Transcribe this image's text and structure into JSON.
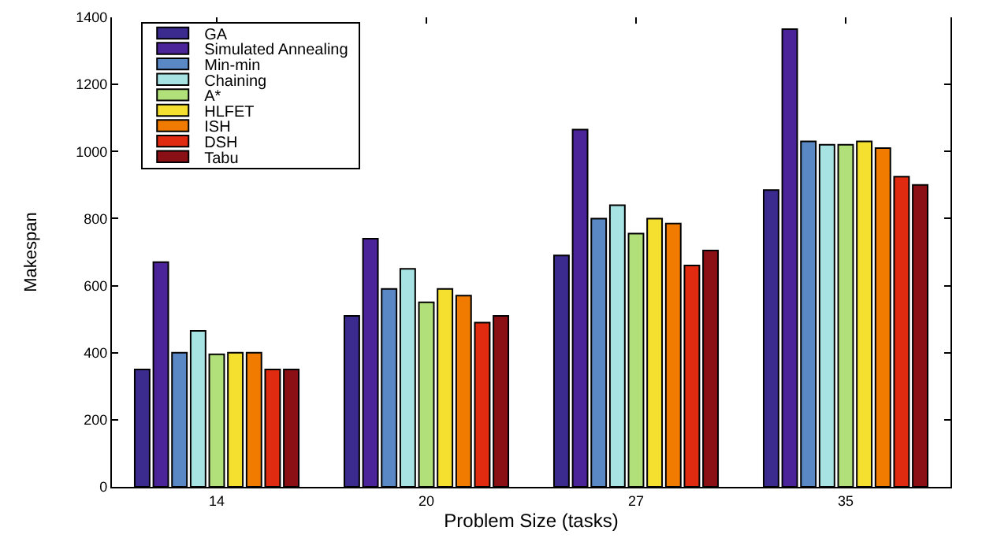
{
  "chart_data": {
    "type": "bar",
    "xlabel": "Problem Size (tasks)",
    "ylabel": "Makespan",
    "categories": [
      "14",
      "20",
      "27",
      "35"
    ],
    "series": [
      {
        "name": "GA",
        "color": "#3b2b8f",
        "values": [
          350,
          510,
          690,
          885
        ]
      },
      {
        "name": "Simulated Annealing",
        "color": "#4c2499",
        "values": [
          670,
          740,
          1065,
          1365
        ]
      },
      {
        "name": "Min-min",
        "color": "#5a88c4",
        "values": [
          400,
          590,
          800,
          1030
        ]
      },
      {
        "name": "Chaining",
        "color": "#a6e3e2",
        "values": [
          465,
          650,
          840,
          1020
        ]
      },
      {
        "name": "A*",
        "color": "#b1e07b",
        "values": [
          395,
          550,
          755,
          1020
        ]
      },
      {
        "name": "HLFET",
        "color": "#f5e02f",
        "values": [
          400,
          590,
          800,
          1030
        ]
      },
      {
        "name": "ISH",
        "color": "#f07b00",
        "values": [
          400,
          570,
          785,
          1010
        ]
      },
      {
        "name": "DSH",
        "color": "#e02b10",
        "values": [
          350,
          490,
          660,
          925
        ]
      },
      {
        "name": "Tabu",
        "color": "#8a1015",
        "values": [
          350,
          510,
          705,
          900
        ]
      }
    ],
    "ylim": [
      0,
      1400
    ],
    "yticks": [
      0,
      200,
      400,
      600,
      800,
      1000,
      1200,
      1400
    ],
    "grid": false,
    "legend": "top left"
  }
}
